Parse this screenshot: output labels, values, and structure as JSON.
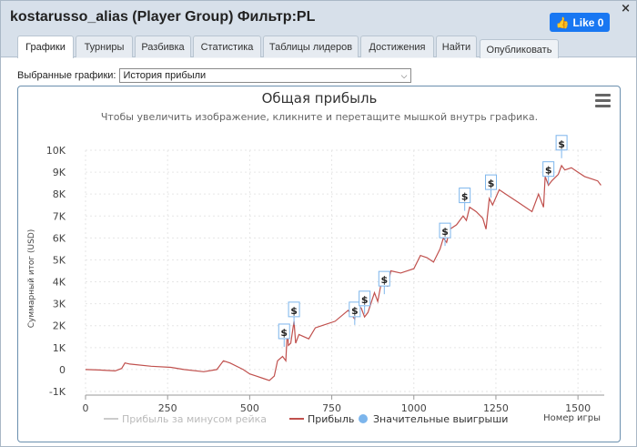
{
  "header": {
    "title": "kostarusso_alias (Player Group) Фильтр:PL",
    "close": "×",
    "fb_like": "Like 0"
  },
  "tabs": [
    {
      "label": "Графики"
    },
    {
      "label": "Турниры"
    },
    {
      "label": "Разбивка"
    },
    {
      "label": "Статистика"
    },
    {
      "label": "Таблицы лидеров"
    },
    {
      "label": "Достижения"
    },
    {
      "label": "Найти"
    },
    {
      "label": "Опубликовать"
    }
  ],
  "selector": {
    "label": "Выбранные графики:",
    "value": "История прибыли"
  },
  "colors": {
    "profit": "#c0504d",
    "rake_series": "#cccccc",
    "big_win": "#7cb5ec",
    "title": "#333333"
  },
  "chart_data": {
    "type": "line",
    "title": "Общая прибыль",
    "subtitle": "Чтобы увеличить изображение, кликните и перетащите мышкой внутрь графика.",
    "ylabel": "Суммарный итог (USD)",
    "xlabel": "Номер игры",
    "xlim": [
      0,
      1580
    ],
    "ylim": [
      -1000,
      10000
    ],
    "xticks": [
      0,
      250,
      500,
      750,
      1000,
      1250,
      1500
    ],
    "xtick_labels": [
      "0",
      "250",
      "500",
      "750",
      "1000",
      "1250",
      "1500"
    ],
    "yticks": [
      -1000,
      0,
      1000,
      2000,
      3000,
      4000,
      5000,
      6000,
      7000,
      8000,
      9000,
      10000
    ],
    "ytick_labels": [
      "-1K",
      "0",
      "1K",
      "2K",
      "3K",
      "4K",
      "5K",
      "6K",
      "7K",
      "8K",
      "9K",
      "10K"
    ],
    "grid": true,
    "legend_position": "bottom",
    "series": [
      {
        "name": "Прибыль за минусом рейка",
        "values": []
      },
      {
        "name": "Прибыль",
        "x": [
          0,
          40,
          90,
          110,
          120,
          135,
          200,
          260,
          300,
          360,
          400,
          420,
          440,
          480,
          500,
          520,
          540,
          560,
          575,
          585,
          600,
          610,
          615,
          618,
          625,
          635,
          640,
          650,
          680,
          700,
          720,
          760,
          800,
          820,
          825,
          840,
          850,
          860,
          880,
          890,
          900,
          920,
          930,
          960,
          1000,
          1020,
          1040,
          1060,
          1080,
          1090,
          1100,
          1110,
          1130,
          1150,
          1160,
          1170,
          1190,
          1210,
          1220,
          1230,
          1240,
          1260,
          1280,
          1320,
          1360,
          1380,
          1395,
          1400,
          1410,
          1420,
          1440,
          1450,
          1460,
          1480,
          1500,
          1520,
          1540,
          1560,
          1570
        ],
        "values": [
          0,
          -20,
          -60,
          50,
          300,
          250,
          150,
          100,
          0,
          -100,
          0,
          400,
          300,
          0,
          -200,
          -300,
          -400,
          -500,
          -300,
          400,
          600,
          400,
          1900,
          1100,
          1200,
          2200,
          1200,
          1600,
          1400,
          1900,
          2000,
          2200,
          2700,
          2300,
          3000,
          2800,
          2400,
          2600,
          3500,
          3100,
          3900,
          3800,
          4500,
          4400,
          4600,
          5200,
          5100,
          4900,
          5500,
          6000,
          5800,
          6400,
          6600,
          7000,
          6800,
          7400,
          7200,
          6900,
          6400,
          7800,
          7500,
          8200,
          8000,
          7600,
          7200,
          8000,
          7400,
          8800,
          8400,
          8600,
          8900,
          9300,
          9100,
          9200,
          9000,
          8800,
          8700,
          8600,
          8400
        ]
      },
      {
        "name": "Значительные выигрыши",
        "x": [
          605,
          635,
          820,
          850,
          910,
          1095,
          1155,
          1235,
          1410,
          1450
        ],
        "values": [
          1700,
          2700,
          2700,
          3200,
          4100,
          6300,
          7900,
          8500,
          9100,
          10300
        ]
      }
    ]
  }
}
